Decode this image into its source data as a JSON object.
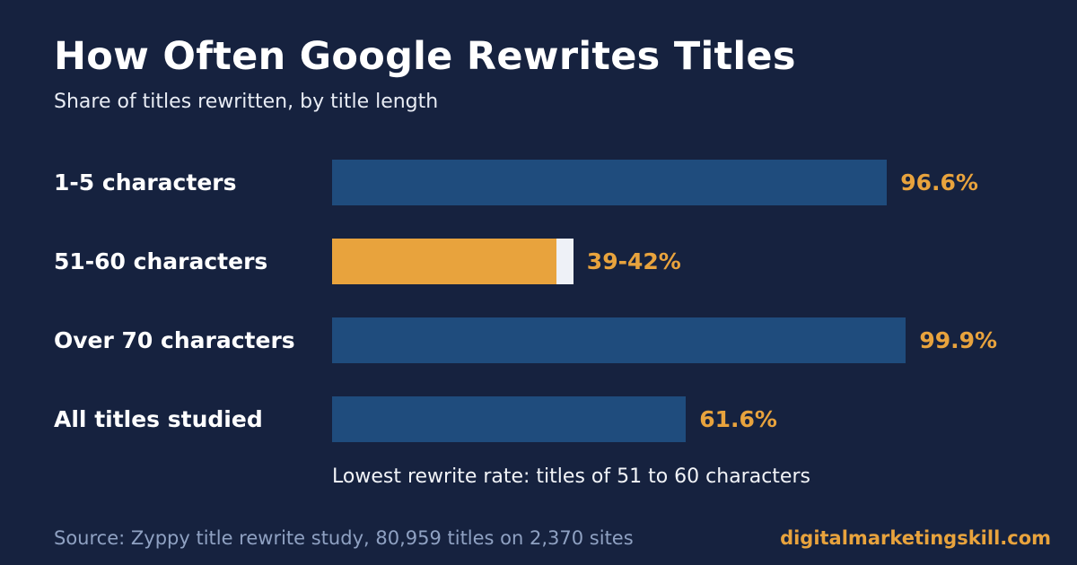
{
  "title": "How Often Google Rewrites Titles",
  "subtitle": "Share of titles rewritten, by title length",
  "colors": {
    "background": "#16223f",
    "bar": "#1f4c7d",
    "highlight": "#e8a33d",
    "range": "#eef1f7",
    "value_label": "#e8a33d",
    "text": "#ffffff"
  },
  "chart_data": {
    "type": "bar",
    "orientation": "horizontal",
    "categories": [
      "1-5 characters",
      "51-60 characters",
      "Over 70 characters",
      "All titles studied"
    ],
    "values": [
      96.6,
      39,
      99.9,
      61.6
    ],
    "value_upper": [
      null,
      42,
      null,
      null
    ],
    "value_labels": [
      "96.6%",
      "39-42%",
      "99.9%",
      "61.6%"
    ],
    "highlight": [
      false,
      true,
      false,
      false
    ],
    "xlim": [
      0,
      100
    ],
    "grid": false,
    "legend": "none",
    "annotation": "Lowest rewrite rate: titles of 51 to 60 characters"
  },
  "footer": {
    "source": "Source: Zyppy title rewrite study, 80,959 titles on 2,370 sites",
    "brand": "digitalmarketingskill.com"
  }
}
